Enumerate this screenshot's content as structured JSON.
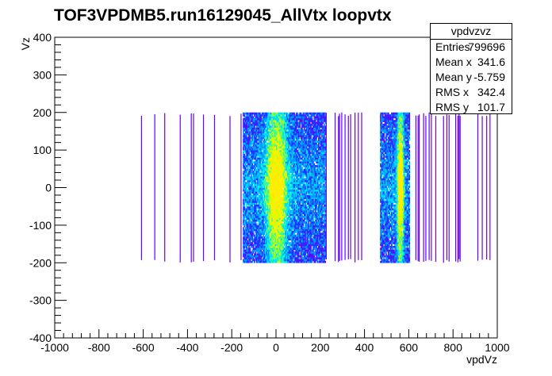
{
  "chart_data": {
    "type": "heatmap",
    "title": "TOF3VPDMB5.run16129045_AllVtx loopvtx",
    "xlabel": "vpdVz",
    "ylabel": "Vz",
    "xlim": [
      -1000,
      1000
    ],
    "ylim": [
      -400,
      400
    ],
    "x_ticks": [
      -1000,
      -800,
      -600,
      -400,
      -200,
      0,
      200,
      400,
      600,
      800,
      1000
    ],
    "y_ticks": [
      -400,
      -300,
      -200,
      -100,
      0,
      100,
      200,
      300,
      400
    ],
    "x_tick_labels": [
      "-1000",
      "-800",
      "-600",
      "-400",
      "-200",
      "0",
      "200",
      "400",
      "600",
      "800",
      "1000"
    ],
    "y_tick_labels": [
      "-400",
      "-300",
      "-200",
      "-100",
      "0",
      "100",
      "200",
      "300",
      "400"
    ],
    "y_band": [
      -200,
      200
    ],
    "description_values": {
      "x_extent_sparse": [
        -630,
        1000
      ],
      "dense_region_1": [
        -150,
        220
      ],
      "dense_peak_1": 0,
      "dense_region_2": [
        470,
        600
      ],
      "dense_peak_2": 560
    },
    "palette": [
      "#6600ff",
      "#2233ff",
      "#0099ff",
      "#00ddff",
      "#33ff99",
      "#ccff00",
      "#ffee00"
    ],
    "stats": {
      "name": "vpdvzvz",
      "rows": [
        {
          "key": "Entries",
          "value": "799696"
        },
        {
          "key": "Mean x",
          "value": "341.6"
        },
        {
          "key": "Mean y",
          "value": "-5.759"
        },
        {
          "key": "RMS x",
          "value": "342.4"
        },
        {
          "key": "RMS y",
          "value": "101.7"
        }
      ]
    }
  }
}
